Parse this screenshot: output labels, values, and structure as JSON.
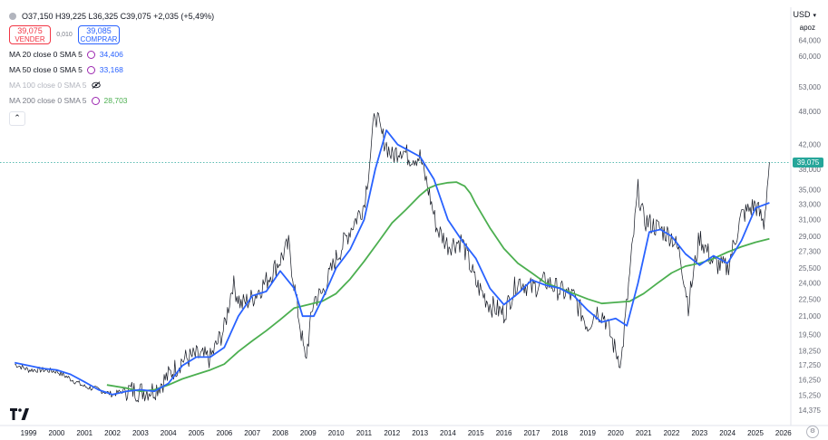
{
  "header": {
    "ohlc": "O37,150 H39,225 L36,325 C39,075 +2,035 (+5,49%)",
    "sell_price": "39,075",
    "sell_label": "VENDER",
    "spread": "0,010",
    "buy_price": "39,085",
    "buy_label": "COMPRAR",
    "collapse": "⌃"
  },
  "indicators": [
    {
      "label": "MA 20 close 0 SMA 5",
      "value": "34,406",
      "visible": true,
      "color": "#2962ff"
    },
    {
      "label": "MA 50 close 0 SMA 5",
      "value": "33,168",
      "visible": true,
      "color": "#2962ff"
    },
    {
      "label": "MA 100 close 0 SMA 5",
      "value": "",
      "visible": false,
      "color": "#b2b5be"
    },
    {
      "label": "MA 200 close 0 SMA 5",
      "value": "28,703",
      "visible": true,
      "color": "#4caf50"
    }
  ],
  "axis": {
    "currency": "USD",
    "scale_mode": "apoz",
    "last_price": "39,075"
  },
  "colors": {
    "price": "#131722",
    "ma50": "#2962ff",
    "ma200": "#4caf50",
    "last_price_line": "#26a69a"
  },
  "chart_data": {
    "type": "line",
    "yscale": "log",
    "ylim": [
      13.9,
      70
    ],
    "xlim": [
      1998.3,
      2026.2
    ],
    "y_ticks": [
      "64,000",
      "60,000",
      "53,000",
      "48,000",
      "42,000",
      "38,000",
      "35,000",
      "33,000",
      "31,000",
      "29,000",
      "27,300",
      "25,500",
      "24,000",
      "22,500",
      "21,000",
      "19,500",
      "18,250",
      "17,250",
      "16,250",
      "15,250",
      "14,375"
    ],
    "x_ticks": [
      "1999",
      "2000",
      "2001",
      "2002",
      "2003",
      "2004",
      "2005",
      "2006",
      "2007",
      "2008",
      "2009",
      "2010",
      "2011",
      "2012",
      "2013",
      "2014",
      "2015",
      "2016",
      "2017",
      "2018",
      "2019",
      "2020",
      "2021",
      "2022",
      "2023",
      "2024",
      "2025",
      "2026"
    ],
    "series": [
      {
        "name": "",
        "x": [
          1998.5,
          1999.0,
          1999.5,
          2000.0,
          2000.5,
          2001.0,
          2001.5,
          2002.0,
          2002.5,
          2003.0,
          2003.5,
          2004.0,
          2004.5,
          2005.0,
          2005.5,
          2006.0,
          2006.3,
          2006.6,
          2007.0,
          2007.5,
          2008.0,
          2008.3,
          2008.6,
          2008.9,
          2009.2,
          2009.5,
          2010.0,
          2010.5,
          2011.0,
          2011.15,
          2011.4,
          2011.6,
          2012.0,
          2012.3,
          2012.6,
          2013.0,
          2013.3,
          2013.6,
          2014.0,
          2014.5,
          2015.0,
          2015.5,
          2016.0,
          2016.5,
          2017.0,
          2017.5,
          2018.0,
          2018.5,
          2019.0,
          2019.3,
          2019.6,
          2020.0,
          2020.2,
          2020.5,
          2020.8,
          2021.0,
          2021.5,
          2022.0,
          2022.3,
          2022.6,
          2023.0,
          2023.5,
          2024.0,
          2024.5,
          2025.0,
          2025.3,
          2025.5
        ],
        "values": [
          17.3,
          16.9,
          16.9,
          16.8,
          16.3,
          15.8,
          15.6,
          15.3,
          15.6,
          15.5,
          15.6,
          16.5,
          17.6,
          17.9,
          17.7,
          20.0,
          24.0,
          22.0,
          22.6,
          24.2,
          26.4,
          28.0,
          22.0,
          17.5,
          22.5,
          23.0,
          26.5,
          29.8,
          33.0,
          37.5,
          48.0,
          44.0,
          40.0,
          41.5,
          40.0,
          40.0,
          35.0,
          30.0,
          28.0,
          28.5,
          24.0,
          22.0,
          21.2,
          24.3,
          23.5,
          24.2,
          23.3,
          22.7,
          20.2,
          21.5,
          21.0,
          18.2,
          17.5,
          24.8,
          35.0,
          31.0,
          30.0,
          29.0,
          27.0,
          22.0,
          29.0,
          26.0,
          25.5,
          31.5,
          33.0,
          30.5,
          39.1
        ]
      },
      {
        "name": "",
        "x": [
          1998.5,
          1999.5,
          2000.0,
          2000.5,
          2001.0,
          2001.5,
          2002.0,
          2002.5,
          2003.0,
          2003.5,
          2004.0,
          2004.5,
          2005.0,
          2005.5,
          2006.0,
          2006.5,
          2007.0,
          2007.5,
          2008.0,
          2008.5,
          2008.8,
          2009.2,
          2009.6,
          2010.0,
          2010.5,
          2011.0,
          2011.4,
          2011.8,
          2012.2,
          2012.6,
          2013.0,
          2013.5,
          2014.0,
          2014.5,
          2015.0,
          2015.5,
          2016.0,
          2016.5,
          2017.0,
          2017.5,
          2018.0,
          2018.5,
          2019.0,
          2019.5,
          2020.0,
          2020.4,
          2020.8,
          2021.2,
          2021.6,
          2022.0,
          2022.5,
          2023.0,
          2023.5,
          2024.0,
          2024.5,
          2025.0,
          2025.5
        ],
        "values": [
          17.4,
          17.0,
          16.9,
          16.6,
          16.1,
          15.6,
          15.3,
          15.5,
          15.6,
          15.5,
          16.0,
          17.2,
          17.8,
          17.8,
          18.5,
          21.0,
          22.8,
          23.2,
          25.2,
          23.5,
          21.0,
          21.0,
          23.0,
          25.5,
          27.5,
          31.0,
          38.0,
          44.5,
          42.0,
          41.0,
          40.0,
          36.5,
          31.0,
          28.5,
          26.5,
          23.5,
          22.0,
          23.0,
          24.3,
          23.8,
          23.5,
          22.8,
          21.5,
          20.5,
          20.8,
          20.2,
          24.0,
          29.5,
          29.8,
          29.0,
          27.0,
          25.8,
          26.8,
          26.0,
          28.5,
          32.5,
          33.2
        ]
      },
      {
        "name": "",
        "x": [
          2001.8,
          2002.5,
          2003.0,
          2003.5,
          2004.0,
          2004.5,
          2005.0,
          2005.5,
          2006.0,
          2006.5,
          2007.0,
          2007.5,
          2008.0,
          2008.5,
          2009.0,
          2009.5,
          2010.0,
          2010.5,
          2011.0,
          2011.5,
          2012.0,
          2012.5,
          2013.0,
          2013.3,
          2013.6,
          2014.0,
          2014.3,
          2014.6,
          2014.8,
          2015.0,
          2015.5,
          2016.0,
          2016.5,
          2017.0,
          2017.5,
          2018.0,
          2018.5,
          2019.0,
          2019.5,
          2020.0,
          2020.5,
          2021.0,
          2021.5,
          2022.0,
          2022.5,
          2023.0,
          2023.5,
          2024.0,
          2024.5,
          2025.0,
          2025.5
        ],
        "values": [
          15.9,
          15.7,
          15.5,
          15.6,
          15.9,
          16.3,
          16.6,
          16.9,
          17.3,
          18.2,
          19.0,
          19.8,
          20.7,
          21.7,
          22.0,
          22.3,
          23.0,
          24.4,
          26.2,
          28.3,
          30.6,
          32.3,
          34.2,
          35.2,
          35.7,
          36.0,
          36.1,
          35.5,
          34.5,
          33.0,
          30.0,
          27.6,
          26.0,
          25.0,
          24.0,
          23.5,
          23.0,
          22.5,
          22.1,
          22.2,
          22.3,
          23.0,
          24.0,
          25.0,
          25.7,
          26.0,
          26.5,
          27.2,
          27.8,
          28.3,
          28.7
        ]
      }
    ]
  }
}
